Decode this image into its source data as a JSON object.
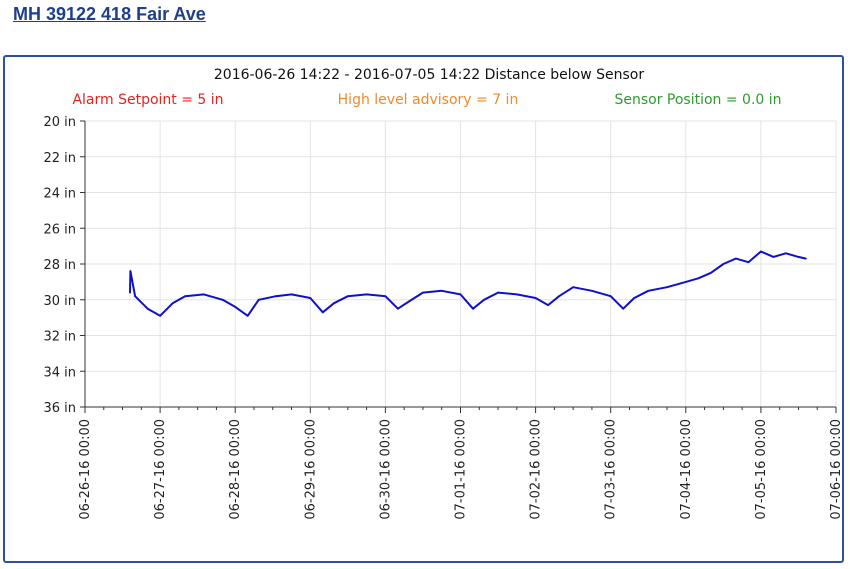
{
  "header": {
    "title": "MH 39122 418 Fair Ave"
  },
  "colors": {
    "title_link": "#1f3e8c",
    "frame_border": "#2e4fa3",
    "series": "#1010cc",
    "alarm": "#e8211f",
    "advisory": "#f08a2a",
    "sensor": "#2e9a2e",
    "grid": "#e3e3e3"
  },
  "chart_data": {
    "type": "line",
    "title": "2016-06-26 14:22 - 2016-07-05 14:22 Distance below Sensor",
    "annotations": {
      "alarm": "Alarm Setpoint = 5 in",
      "advisory": "High level advisory = 7 in",
      "sensor": "Sensor Position = 0.0 in"
    },
    "xlabel": "",
    "ylabel": "",
    "y_inverted": true,
    "ylim": [
      20,
      36
    ],
    "y_ticks": [
      20,
      22,
      24,
      26,
      28,
      30,
      32,
      34,
      36
    ],
    "y_tick_labels": [
      "20 in",
      "22 in",
      "24 in",
      "26 in",
      "28 in",
      "30 in",
      "32 in",
      "34 in",
      "36 in"
    ],
    "x_range": [
      "2016-06-26 00:00",
      "2016-07-06 00:00"
    ],
    "x_tick_labels": [
      "06-26-16 00:00",
      "06-27-16 00:00",
      "06-28-16 00:00",
      "06-29-16 00:00",
      "06-30-16 00:00",
      "07-01-16 00:00",
      "07-02-16 00:00",
      "07-03-16 00:00",
      "07-04-16 00:00",
      "07-05-16 00:00",
      "07-06-16 00:00"
    ],
    "grid": true,
    "series": [
      {
        "x": [
          "2016-06-26 14:22",
          "2016-06-26 14:30",
          "2016-06-26 16:00",
          "2016-06-26 20:00",
          "2016-06-27 00:00",
          "2016-06-27 04:00",
          "2016-06-27 08:00",
          "2016-06-27 14:00",
          "2016-06-27 20:00",
          "2016-06-28 00:00",
          "2016-06-28 04:00",
          "2016-06-28 07:30",
          "2016-06-28 13:00",
          "2016-06-28 18:00",
          "2016-06-29 00:00",
          "2016-06-29 04:00",
          "2016-06-29 07:30",
          "2016-06-29 12:00",
          "2016-06-29 18:00",
          "2016-06-30 00:00",
          "2016-06-30 04:00",
          "2016-06-30 07:30",
          "2016-06-30 12:00",
          "2016-06-30 18:00",
          "2016-07-01 00:00",
          "2016-07-01 04:00",
          "2016-07-01 07:30",
          "2016-07-01 12:00",
          "2016-07-01 18:00",
          "2016-07-02 00:00",
          "2016-07-02 04:00",
          "2016-07-02 07:30",
          "2016-07-02 12:00",
          "2016-07-02 18:00",
          "2016-07-03 00:00",
          "2016-07-03 04:00",
          "2016-07-03 07:30",
          "2016-07-03 12:00",
          "2016-07-03 18:00",
          "2016-07-04 00:00",
          "2016-07-04 04:00",
          "2016-07-04 08:00",
          "2016-07-04 12:00",
          "2016-07-04 16:00",
          "2016-07-04 20:00",
          "2016-07-05 00:00",
          "2016-07-05 04:00",
          "2016-07-05 08:00",
          "2016-07-05 12:00",
          "2016-07-05 14:22"
        ],
        "values": [
          29.6,
          28.4,
          29.8,
          30.5,
          30.9,
          30.2,
          29.8,
          29.7,
          30.0,
          30.4,
          30.9,
          30.0,
          29.8,
          29.7,
          29.9,
          30.7,
          30.2,
          29.8,
          29.7,
          29.8,
          30.5,
          30.1,
          29.6,
          29.5,
          29.7,
          30.5,
          30.0,
          29.6,
          29.7,
          29.9,
          30.3,
          29.8,
          29.3,
          29.5,
          29.8,
          30.5,
          29.9,
          29.5,
          29.3,
          29.0,
          28.8,
          28.5,
          28.0,
          27.7,
          27.9,
          27.3,
          27.6,
          27.4,
          27.6,
          27.7
        ]
      }
    ]
  }
}
